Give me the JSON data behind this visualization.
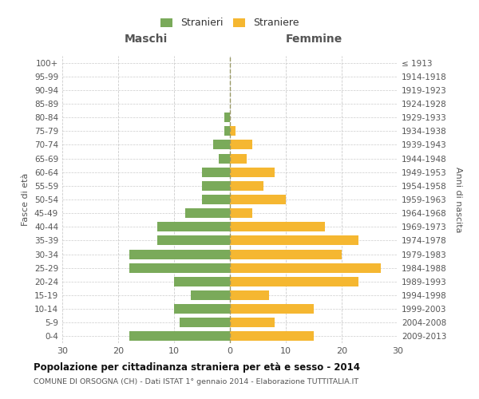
{
  "age_groups": [
    "0-4",
    "5-9",
    "10-14",
    "15-19",
    "20-24",
    "25-29",
    "30-34",
    "35-39",
    "40-44",
    "45-49",
    "50-54",
    "55-59",
    "60-64",
    "65-69",
    "70-74",
    "75-79",
    "80-84",
    "85-89",
    "90-94",
    "95-99",
    "100+"
  ],
  "birth_years": [
    "2009-2013",
    "2004-2008",
    "1999-2003",
    "1994-1998",
    "1989-1993",
    "1984-1988",
    "1979-1983",
    "1974-1978",
    "1969-1973",
    "1964-1968",
    "1959-1963",
    "1954-1958",
    "1949-1953",
    "1944-1948",
    "1939-1943",
    "1934-1938",
    "1929-1933",
    "1924-1928",
    "1919-1923",
    "1914-1918",
    "≤ 1913"
  ],
  "maschi": [
    18,
    9,
    10,
    7,
    10,
    18,
    18,
    13,
    13,
    8,
    5,
    5,
    5,
    2,
    3,
    1,
    1,
    0,
    0,
    0,
    0
  ],
  "femmine": [
    15,
    8,
    15,
    7,
    23,
    27,
    20,
    23,
    17,
    4,
    10,
    6,
    8,
    3,
    4,
    1,
    0,
    0,
    0,
    0,
    0
  ],
  "color_maschi": "#7aaa5a",
  "color_femmine": "#f5b731",
  "title": "Popolazione per cittadinanza straniera per età e sesso - 2014",
  "subtitle": "COMUNE DI ORSOGNA (CH) - Dati ISTAT 1° gennaio 2014 - Elaborazione TUTTITALIA.IT",
  "xlabel_left": "Maschi",
  "xlabel_right": "Femmine",
  "ylabel_left": "Fasce di età",
  "ylabel_right": "Anni di nascita",
  "xlim": 30,
  "legend_stranieri": "Stranieri",
  "legend_straniere": "Straniere",
  "background_color": "#ffffff",
  "grid_color": "#cccccc",
  "centerline_color": "#999966"
}
